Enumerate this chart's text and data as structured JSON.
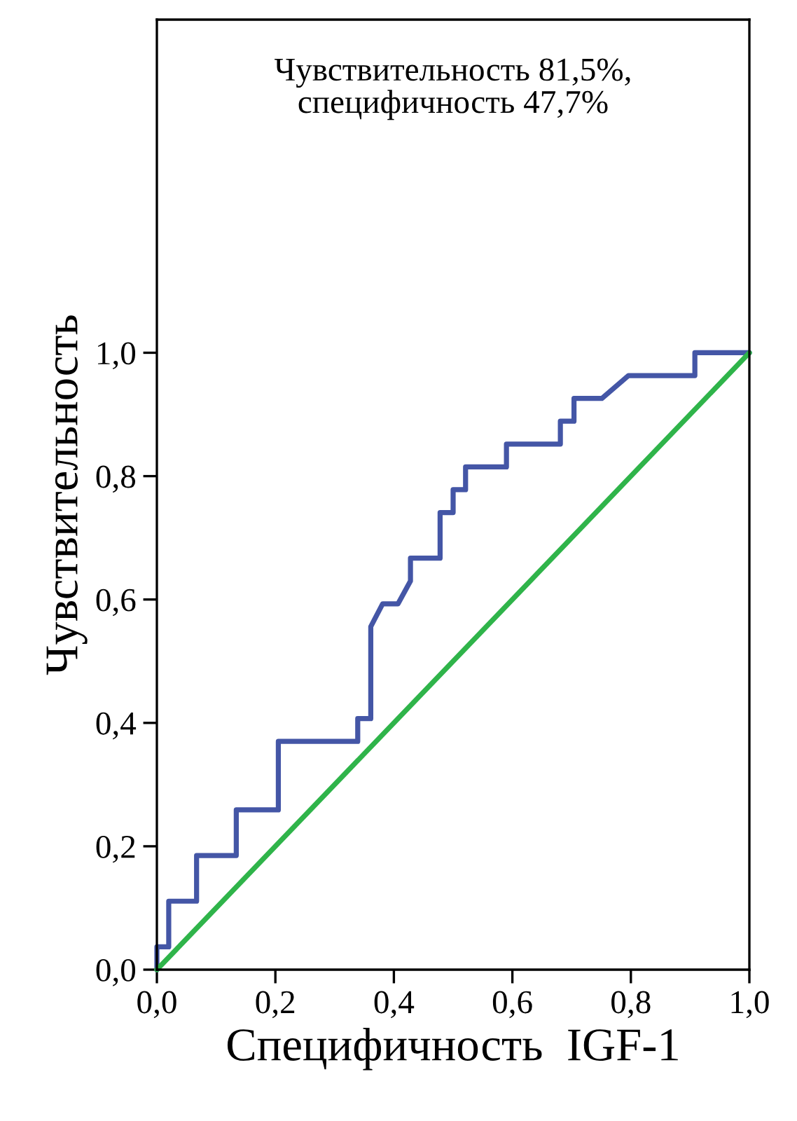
{
  "chart_data": {
    "type": "line",
    "xlabel": "Специфичность  IGF-1",
    "ylabel": "Чувствительность",
    "annotations": [
      "Чувствительность 81,5%,\nспецифичность 47,7%"
    ],
    "series": [
      {
        "color": "#4456a6",
        "x": [
          0,
          0,
          0.02,
          0.02,
          0.067,
          0.067,
          0.134,
          0.134,
          0.205,
          0.205,
          0.339,
          0.339,
          0.361,
          0.361,
          0.381,
          0.407,
          0.428,
          0.428,
          0.478,
          0.478,
          0.5,
          0.5,
          0.521,
          0.521,
          0.59,
          0.59,
          0.681,
          0.681,
          0.704,
          0.704,
          0.751,
          0.796,
          0.908,
          0.908,
          1.0
        ],
        "values": [
          0,
          0.037,
          0.037,
          0.111,
          0.111,
          0.185,
          0.185,
          0.259,
          0.259,
          0.37,
          0.37,
          0.407,
          0.407,
          0.556,
          0.593,
          0.593,
          0.63,
          0.667,
          0.667,
          0.741,
          0.741,
          0.778,
          0.778,
          0.815,
          0.815,
          0.852,
          0.852,
          0.889,
          0.889,
          0.926,
          0.926,
          0.963,
          0.963,
          1.0,
          1.0
        ]
      },
      {
        "color": "#2fb44a",
        "x": [
          0,
          1
        ],
        "values": [
          0,
          1
        ]
      }
    ],
    "xlim": [
      0,
      1
    ],
    "ylim": [
      0,
      1.54
    ],
    "xticks": [
      {
        "value": 0,
        "label": "0,0"
      },
      {
        "value": 0.2,
        "label": "0,2"
      },
      {
        "value": 0.4,
        "label": "0,4"
      },
      {
        "value": 0.6,
        "label": "0,6"
      },
      {
        "value": 0.8,
        "label": "0,8"
      },
      {
        "value": 1.0,
        "label": "1,0"
      }
    ],
    "yticks": [
      {
        "value": 0,
        "label": "0,0"
      },
      {
        "value": 0.2,
        "label": "0,2"
      },
      {
        "value": 0.4,
        "label": "0,4"
      },
      {
        "value": 0.6,
        "label": "0,6"
      },
      {
        "value": 0.8,
        "label": "0,8"
      },
      {
        "value": 1.0,
        "label": "1,0"
      }
    ],
    "grid": false,
    "legend": false
  }
}
